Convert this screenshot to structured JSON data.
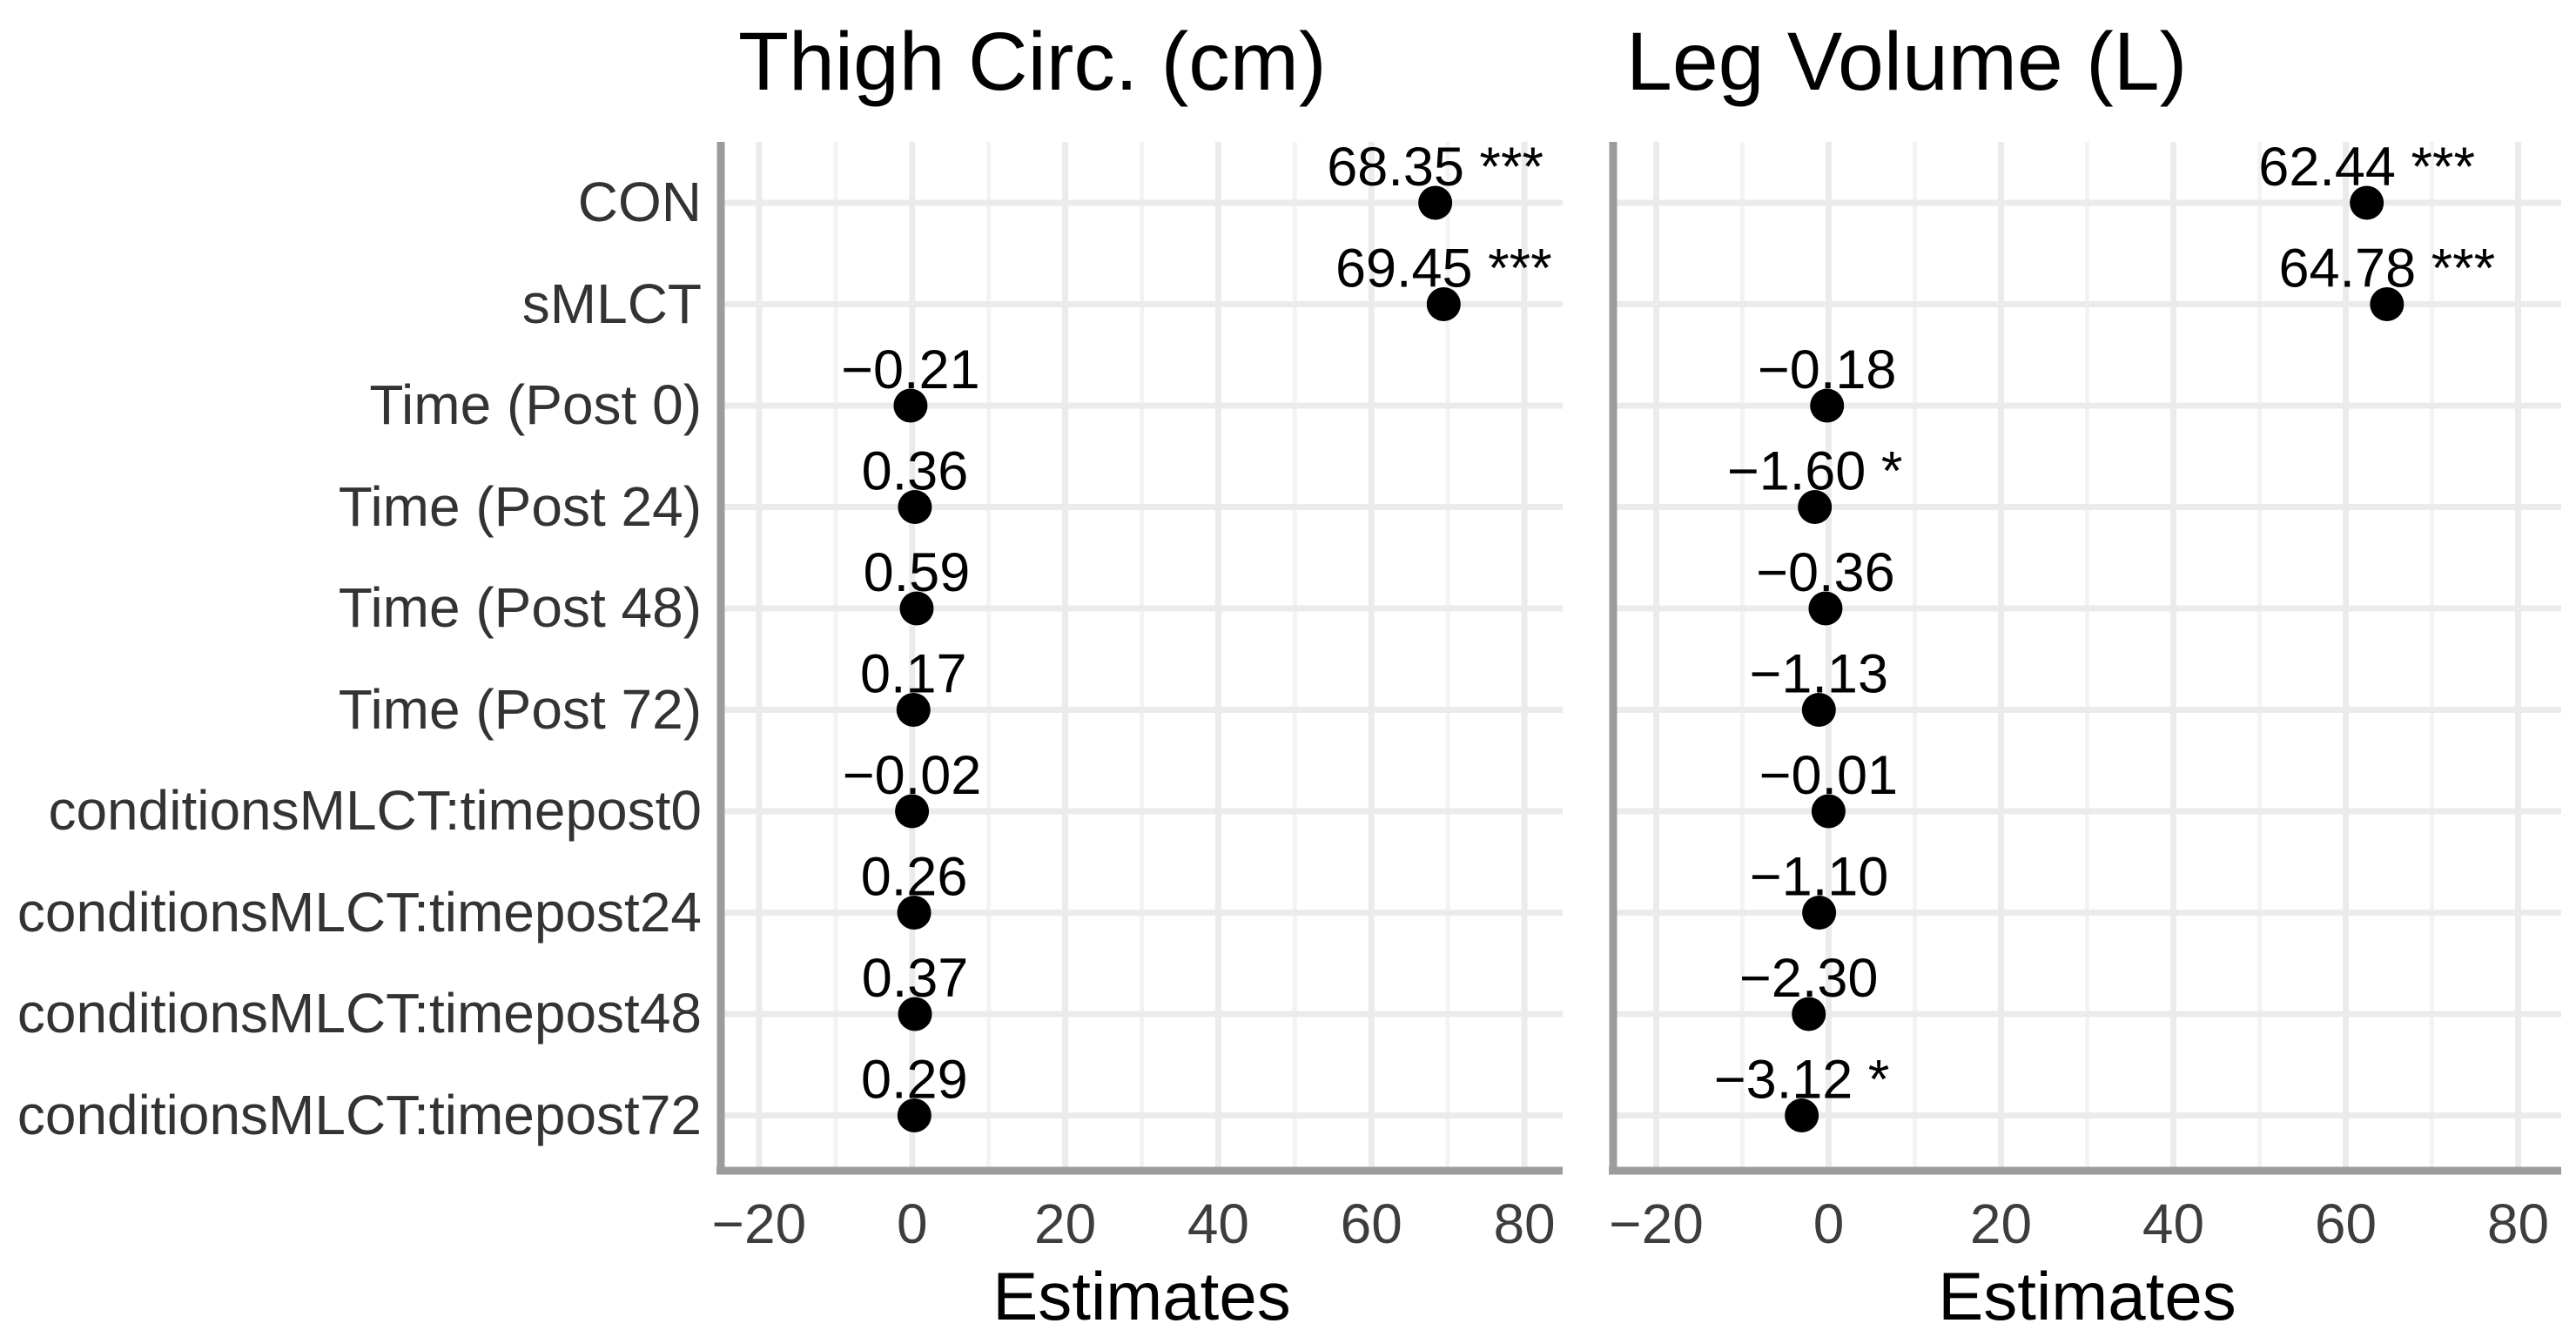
{
  "figure": {
    "background": "#ffffff",
    "dot_color": "#000000",
    "axis_line_color": "#9c9c9c",
    "grid_major_color": "#ebebeb",
    "grid_minor_color": "#f3f3f3",
    "tick_label_color": "#3d3d3d",
    "category_label_color": "#333333"
  },
  "chart_data": [
    {
      "type": "scatter",
      "title": "Thigh Circ. (cm)",
      "xlabel": "Estimates",
      "xlim": [
        -25,
        85
      ],
      "x_ticks": [
        -20,
        0,
        20,
        40,
        60,
        80
      ],
      "x_tick_labels": [
        "−20",
        "0",
        "20",
        "40",
        "60",
        "80"
      ],
      "grid_minor_step": 10,
      "grid": true,
      "legend_position": "none",
      "categories": [
        "CON",
        "sMLCT",
        "Time (Post 0)",
        "Time (Post 24)",
        "Time (Post 48)",
        "Time (Post 72)",
        "conditionsMLCT:timepost0",
        "conditionsMLCT:timepost24",
        "conditionsMLCT:timepost48",
        "conditionsMLCT:timepost72"
      ],
      "values": [
        68.35,
        69.45,
        -0.21,
        0.36,
        0.59,
        0.17,
        -0.02,
        0.26,
        0.37,
        0.29
      ],
      "value_labels": [
        "68.35",
        "69.45",
        "−0.21",
        "0.36",
        "0.59",
        "0.17",
        "−0.02",
        "0.26",
        "0.37",
        "0.29"
      ],
      "significance": [
        "***",
        "***",
        "",
        "",
        "",
        "",
        "",
        "",
        "",
        ""
      ]
    },
    {
      "type": "scatter",
      "title": "Leg Volume (L)",
      "xlabel": "Estimates",
      "xlim": [
        -25,
        85
      ],
      "x_ticks": [
        -20,
        0,
        20,
        40,
        60,
        80
      ],
      "x_tick_labels": [
        "−20",
        "0",
        "20",
        "40",
        "60",
        "80"
      ],
      "grid_minor_step": 10,
      "grid": true,
      "legend_position": "none",
      "categories": [
        "CON",
        "sMLCT",
        "Time (Post 0)",
        "Time (Post 24)",
        "Time (Post 48)",
        "Time (Post 72)",
        "conditionsMLCT:timepost0",
        "conditionsMLCT:timepost24",
        "conditionsMLCT:timepost48",
        "conditionsMLCT:timepost72"
      ],
      "values": [
        62.44,
        64.78,
        -0.18,
        -1.6,
        -0.36,
        -1.13,
        -0.01,
        -1.1,
        -2.3,
        -3.12
      ],
      "value_labels": [
        "62.44",
        "64.78",
        "−0.18",
        "−1.60",
        "−0.36",
        "−1.13",
        "−0.01",
        "−1.10",
        "−2.30",
        "−3.12"
      ],
      "significance": [
        "***",
        "***",
        "",
        "*",
        "",
        "",
        "",
        "",
        "",
        "*"
      ]
    }
  ]
}
